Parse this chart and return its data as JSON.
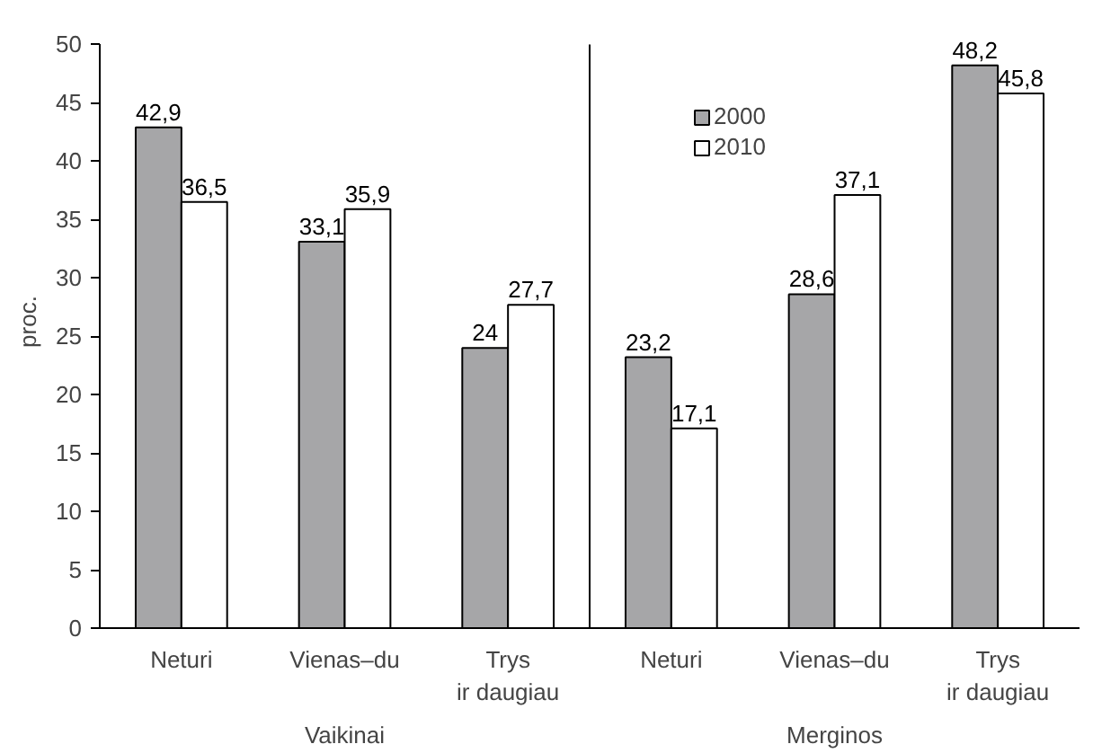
{
  "chart_data": {
    "type": "bar",
    "ylabel": "proc.",
    "categories": [
      "Neturi",
      "Vienas–du",
      "Trys\nir daugiau",
      "Neturi",
      "Vienas–du",
      "Trys\nir daugiau"
    ],
    "series": [
      {
        "name": "2000",
        "color": "#a6a6a8",
        "values": [
          42.9,
          33.1,
          24,
          23.2,
          28.6,
          48.2
        ],
        "value_labels": [
          "42,9",
          "33,1",
          "24",
          "23,2",
          "28,6",
          "48,2"
        ]
      },
      {
        "name": "2010",
        "color": "#ffffff",
        "values": [
          36.5,
          35.9,
          27.7,
          17.1,
          37.1,
          45.8
        ],
        "value_labels": [
          "36,5",
          "35,9",
          "27,7",
          "17,1",
          "37,1",
          "45,8"
        ]
      }
    ],
    "annotations": [
      "Vaikinai",
      "Merginos"
    ],
    "ylim": [
      0,
      50
    ],
    "yticks": [
      0,
      5,
      10,
      15,
      20,
      25,
      30,
      35,
      40,
      45,
      50
    ],
    "grid": false,
    "legend": "top right"
  }
}
